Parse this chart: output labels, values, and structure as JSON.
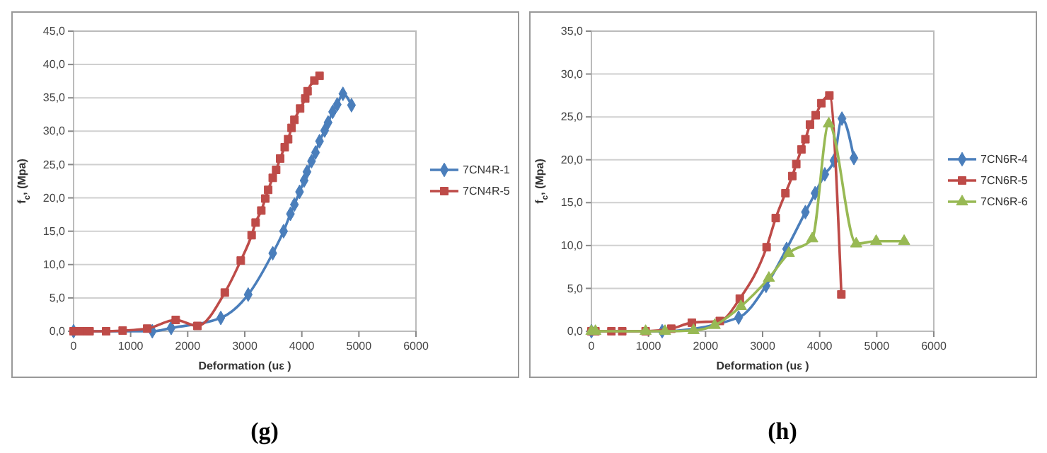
{
  "chart_data": [
    {
      "type": "line",
      "title": "(g)",
      "xlabel": "Deformation (uε )",
      "ylabel": "f$_{c}$, (Mpa)",
      "xlim": [
        0,
        6000
      ],
      "xticks": [
        0,
        1000,
        2000,
        3000,
        4000,
        5000,
        6000
      ],
      "ylim": [
        0,
        45
      ],
      "yticks": [
        {
          "value": 0,
          "label": "0,0"
        },
        {
          "value": 5,
          "label": "5,0"
        },
        {
          "value": 10,
          "label": "10,0"
        },
        {
          "value": 15,
          "label": "15,0"
        },
        {
          "value": 20,
          "label": "20,0"
        },
        {
          "value": 25,
          "label": "25,0"
        },
        {
          "value": 30,
          "label": "30,0"
        },
        {
          "value": 35,
          "label": "35,0"
        },
        {
          "value": 40,
          "label": "40,0"
        },
        {
          "value": 45,
          "label": "45,0"
        }
      ],
      "grid": "y",
      "legend": "right",
      "line_style": "solid",
      "series": [
        {
          "name": "7CN4R-1",
          "color": "#4a7ebb",
          "marker": "diamond",
          "x": [
            0,
            1380,
            1710,
            2100,
            2580,
            3060,
            3490,
            3680,
            3800,
            3870,
            3960,
            4040,
            4090,
            4170,
            4240,
            4310,
            4400,
            4460,
            4540,
            4620,
            4720,
            4870
          ],
          "values": [
            0,
            0,
            0.5,
            null,
            2.0,
            5.5,
            11.7,
            15.0,
            17.6,
            19.0,
            20.9,
            22.6,
            23.9,
            25.5,
            26.8,
            28.5,
            30.1,
            31.3,
            32.9,
            34.0,
            35.6,
            33.9
          ]
        },
        {
          "name": "7CN4R-5",
          "color": "#be4b48",
          "marker": "square",
          "x": [
            0,
            110,
            240,
            280,
            570,
            860,
            1290,
            1790,
            2170,
            2650,
            2930,
            3120,
            3190,
            3290,
            3360,
            3410,
            3490,
            3550,
            3620,
            3700,
            3760,
            3820,
            3870,
            3970,
            4060,
            4100,
            4220,
            4310
          ],
          "values": [
            0,
            0,
            0,
            0,
            0,
            0.1,
            0.4,
            1.7,
            0.8,
            5.8,
            10.6,
            14.4,
            16.3,
            18.1,
            19.9,
            21.2,
            23.0,
            24.2,
            25.9,
            27.6,
            28.8,
            30.5,
            31.7,
            33.4,
            34.9,
            36.0,
            37.6,
            38.3
          ]
        }
      ]
    },
    {
      "type": "line",
      "title": "(h)",
      "xlabel": "Deformation (uε )",
      "ylabel": "f$_{c}$, (Mpa)",
      "xlim": [
        0,
        6000
      ],
      "xticks": [
        0,
        1000,
        2000,
        3000,
        4000,
        5000,
        6000
      ],
      "ylim": [
        0,
        35
      ],
      "yticks": [
        {
          "value": 0,
          "label": "0,0"
        },
        {
          "value": 5,
          "label": "5,0"
        },
        {
          "value": 10,
          "label": "10,0"
        },
        {
          "value": 15,
          "label": "15,0"
        },
        {
          "value": 20,
          "label": "20,0"
        },
        {
          "value": 25,
          "label": "25,0"
        },
        {
          "value": 30,
          "label": "30,0"
        },
        {
          "value": 35,
          "label": "35,0"
        }
      ],
      "grid": "y",
      "legend": "right",
      "line_style": "solid",
      "series": [
        {
          "name": "7CN6R-4",
          "color": "#4a7ebb",
          "marker": "diamond",
          "x": [
            0,
            1240,
            2210,
            2580,
            3060,
            3420,
            3750,
            3920,
            4090,
            4250,
            4390,
            4600
          ],
          "values": [
            0,
            0,
            null,
            1.6,
            5.3,
            9.6,
            13.9,
            16.1,
            18.3,
            19.9,
            24.8,
            20.2
          ]
        },
        {
          "name": "7CN6R-5",
          "color": "#be4b48",
          "marker": "square",
          "x": [
            0,
            70,
            350,
            540,
            950,
            1400,
            1760,
            2250,
            2600,
            3070,
            3230,
            3400,
            3520,
            3590,
            3680,
            3750,
            3830,
            3930,
            4030,
            4170,
            4380
          ],
          "values": [
            0,
            0,
            0,
            0,
            0,
            0.3,
            1.0,
            1.2,
            3.8,
            9.8,
            13.2,
            16.1,
            18.1,
            19.5,
            21.2,
            22.4,
            24.1,
            25.2,
            26.6,
            27.5,
            4.3
          ]
        },
        {
          "name": "7CN6R-6",
          "color": "#98b954",
          "marker": "triangle",
          "x": [
            0,
            70,
            950,
            1290,
            1790,
            2160,
            2620,
            3110,
            3460,
            3870,
            4160,
            4640,
            4990,
            5480
          ],
          "values": [
            0,
            0,
            0,
            0,
            0.1,
            0.7,
            2.9,
            6.2,
            9.1,
            10.8,
            24.2,
            10.2,
            10.5,
            10.5
          ]
        }
      ]
    }
  ]
}
